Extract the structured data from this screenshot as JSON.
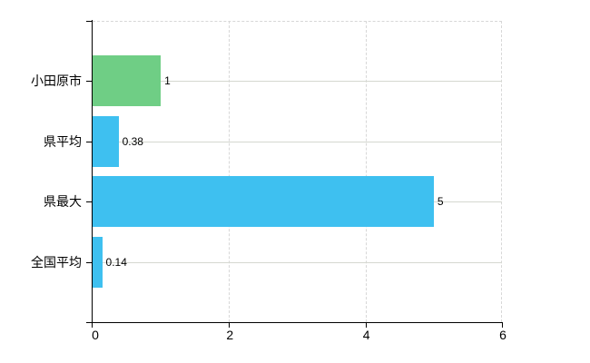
{
  "chart_data": {
    "type": "bar",
    "orientation": "horizontal",
    "title": "",
    "categories": [
      "小田原市",
      "県平均",
      "県最大",
      "全国平均"
    ],
    "values": [
      1,
      0.38,
      5,
      0.14
    ],
    "value_labels": [
      "1",
      "0.38",
      "5",
      "0.14"
    ],
    "highlight_category": "小田原市",
    "xlim": [
      0,
      6
    ],
    "x_ticks": [
      "0",
      "2",
      "4",
      "6"
    ],
    "legend": "none",
    "grid": {
      "vertical_style": "dashed",
      "horizontal_style": "solid"
    },
    "colors": {
      "highlight_bar": "#6fce85",
      "default_bar": "#3ec0f0",
      "axis": "#000000",
      "gridline_solid": "#d5d8d0",
      "gridline_dashed": "#d7d7d7",
      "text": "#000000",
      "background": "#ffffff"
    }
  }
}
